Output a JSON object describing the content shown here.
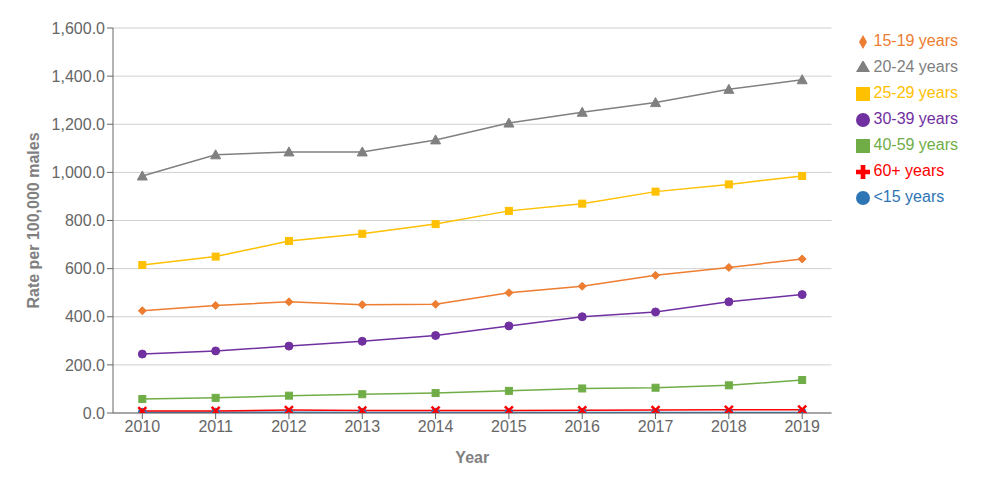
{
  "chart_data": {
    "type": "line",
    "x": [
      2010,
      2011,
      2012,
      2013,
      2014,
      2015,
      2016,
      2017,
      2018,
      2019
    ],
    "xlabel": "Year",
    "ylabel": "Rate per 100,000 males",
    "xlim": [
      2009.6,
      2019.4
    ],
    "xticks": [
      2010,
      2011,
      2012,
      2013,
      2014,
      2015,
      2016,
      2017,
      2018,
      2019
    ],
    "ylim": [
      0,
      1600
    ],
    "yticks": [
      {
        "value": 0,
        "label": "0.0"
      },
      {
        "value": 200,
        "label": "200.0"
      },
      {
        "value": 400,
        "label": "400.0"
      },
      {
        "value": 600,
        "label": "600.0"
      },
      {
        "value": 800,
        "label": "800.0"
      },
      {
        "value": 1000,
        "label": "1,000.0"
      },
      {
        "value": 1200,
        "label": "1,200.0"
      },
      {
        "value": 1400,
        "label": "1,400.0"
      },
      {
        "value": 1600,
        "label": "1,600.0"
      }
    ],
    "grid": true,
    "legend": "right",
    "series": [
      {
        "name": "<15 years",
        "color": "#2e75b6",
        "marker": "circle",
        "values": [
          3.0,
          3.0,
          3.0,
          2.5,
          2.5,
          2.5,
          2.5,
          2.0,
          2.0,
          2.0
        ]
      },
      {
        "name": "15-19 years",
        "color": "#ed7d31",
        "marker": "diamond",
        "values": [
          425.0,
          447.0,
          462.0,
          450.0,
          452.0,
          500.0,
          527.0,
          572.0,
          605.0,
          640.0
        ]
      },
      {
        "name": "20-24 years",
        "color": "#808080",
        "marker": "triangle",
        "values": [
          985.0,
          1073.0,
          1085.0,
          1085.0,
          1135.0,
          1205.0,
          1250.0,
          1290.0,
          1345.0,
          1385.0
        ]
      },
      {
        "name": "25-29 years",
        "color": "#ffc000",
        "marker": "square",
        "values": [
          615.0,
          650.0,
          715.0,
          745.0,
          785.0,
          840.0,
          870.0,
          920.0,
          950.0,
          985.0
        ]
      },
      {
        "name": "30-39 years",
        "color": "#7030a0",
        "marker": "circle",
        "values": [
          245.0,
          258.0,
          278.0,
          298.0,
          322.0,
          362.0,
          400.0,
          420.0,
          462.0,
          492.0
        ]
      },
      {
        "name": "40-59 years",
        "color": "#70ad47",
        "marker": "square",
        "values": [
          58.0,
          63.0,
          72.0,
          78.0,
          83.0,
          92.0,
          102.0,
          105.0,
          115.0,
          137.0
        ]
      },
      {
        "name": "60+ years",
        "color": "#ff0000",
        "marker": "x",
        "values": [
          8.0,
          8.5,
          12.0,
          10.0,
          10.0,
          10.5,
          11.0,
          12.0,
          13.0,
          14.0
        ]
      }
    ]
  }
}
